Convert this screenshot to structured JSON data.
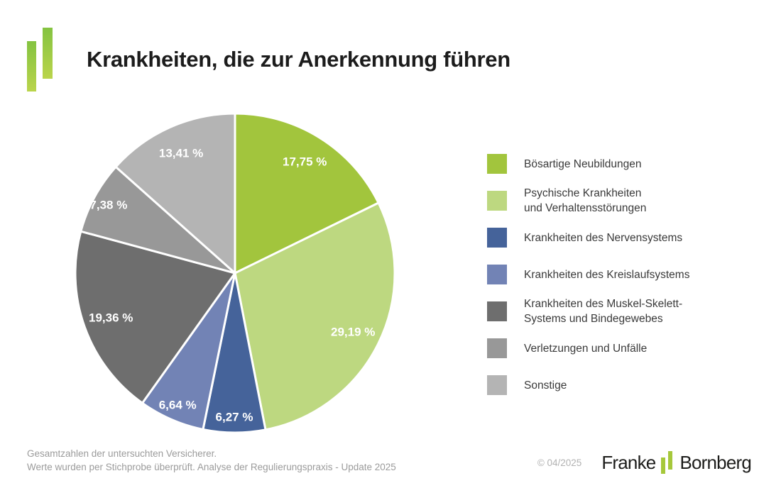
{
  "header": {
    "title": "Krankheiten, die zur Anerkennung führen"
  },
  "chart_data": {
    "type": "pie",
    "title": "Krankheiten, die zur Anerkennung führen",
    "unit": "%",
    "start_angle_deg": 0,
    "direction": "clockwise",
    "legend_position": "right",
    "slices": [
      {
        "label": "Bösartige Neubildungen",
        "legend_lines": [
          "Bösartige Neubildungen"
        ],
        "value": 17.75,
        "display": "17,75 %",
        "color": "#a2c53d"
      },
      {
        "label": "Psychische Krankheiten und Verhaltensstörungen",
        "legend_lines": [
          "Psychische Krankheiten",
          "und Verhaltensstörungen"
        ],
        "value": 29.19,
        "display": "29,19 %",
        "color": "#bdd880"
      },
      {
        "label": "Krankheiten des Nervensystems",
        "legend_lines": [
          "Krankheiten des Nervensystems"
        ],
        "value": 6.27,
        "display": "6,27 %",
        "color": "#45639a"
      },
      {
        "label": "Krankheiten des Kreislaufsystems",
        "legend_lines": [
          "Krankheiten des Kreislaufsystems"
        ],
        "value": 6.64,
        "display": "6,64 %",
        "color": "#7283b5"
      },
      {
        "label": "Krankheiten des Muskel-Skelett-Systems und Bindegewebes",
        "legend_lines": [
          "Krankheiten des Muskel-Skelett-",
          "Systems und Bindegewebes"
        ],
        "value": 19.36,
        "display": "19,36 %",
        "color": "#6e6e6e"
      },
      {
        "label": "Verletzungen und Unfälle",
        "legend_lines": [
          "Verletzungen und Unfälle"
        ],
        "value": 7.38,
        "display": "7,38 %",
        "color": "#989898"
      },
      {
        "label": "Sonstige",
        "legend_lines": [
          "Sonstige"
        ],
        "value": 13.41,
        "display": "13,41 %",
        "color": "#b4b4b4"
      }
    ]
  },
  "footer": {
    "note_line1": "Gesamtzahlen der untersuchten Versicherer.",
    "note_line2": "Werte wurden per Stichprobe überprüft. Analyse der Regulierungspraxis - Update 2025",
    "copyright": "© 04/2025",
    "brand_left": "Franke",
    "brand_right": "Bornberg"
  },
  "colors": {
    "logo_gradient_top": "#84c341",
    "logo_gradient_bottom": "#bad44b",
    "brand_bar_green": "#a6c83b",
    "pie_label_text": "#ffffff",
    "title_text": "#1c1c1c",
    "legend_text": "#3a3a3a",
    "footer_text": "#9b9b9b"
  }
}
